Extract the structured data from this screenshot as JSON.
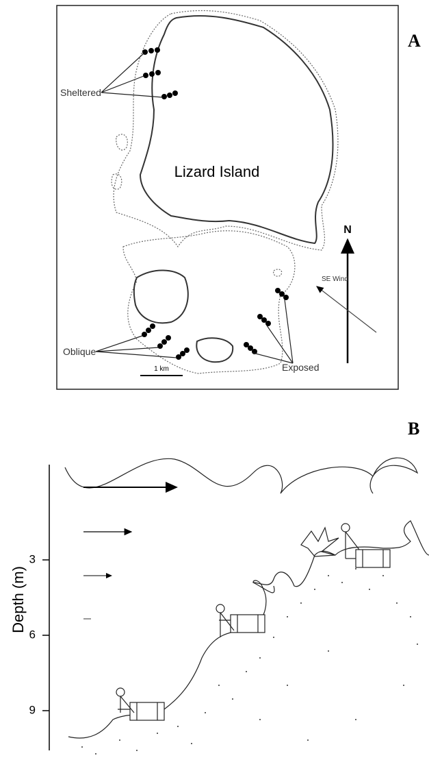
{
  "panel_a": {
    "label": "A",
    "island_name": "Lizard Island",
    "site_labels": [
      "Sheltered",
      "Oblique",
      "Exposed"
    ],
    "north": "N",
    "wind": "SE Wind",
    "scale": "1 km"
  },
  "panel_b": {
    "label": "B",
    "axis_label": "Depth (m)",
    "ticks": [
      3,
      6,
      9
    ]
  }
}
